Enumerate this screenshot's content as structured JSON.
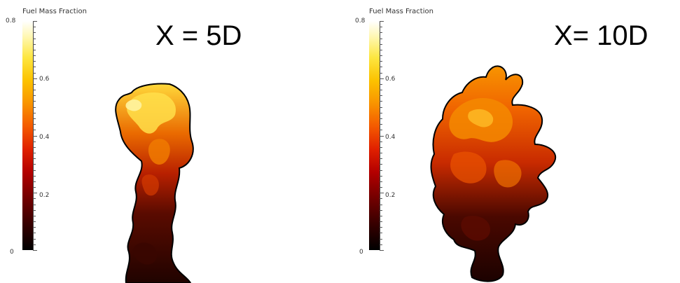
{
  "colorbar": {
    "title": "Fuel Mass Fraction",
    "ticks": [
      "0.8",
      "0.6",
      "0.4",
      "0.2",
      "0"
    ],
    "tick_values": [
      0.8,
      0.6,
      0.4,
      0.2,
      0
    ],
    "range": [
      0,
      0.8
    ]
  },
  "panels": [
    {
      "label": "X = 5D"
    },
    {
      "label": "X= 10D"
    }
  ],
  "colors": {
    "dark_core": "#2a0500",
    "mid": "#b81e00",
    "orange": "#f07000",
    "yellow": "#ffd21e",
    "edge": "#000000"
  }
}
